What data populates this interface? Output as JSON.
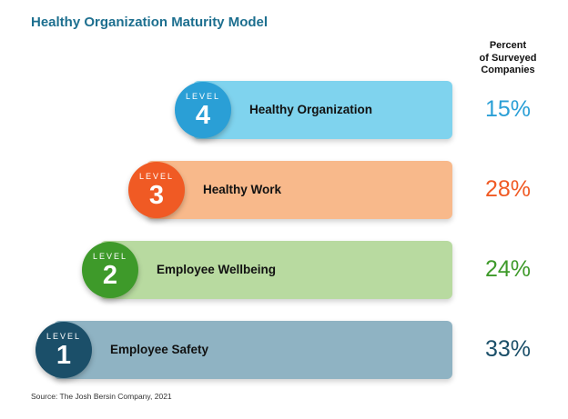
{
  "title": "Healthy Organization Maturity Model",
  "percent_header": [
    "Percent",
    "of Surveyed",
    "Companies"
  ],
  "source": "Source: The Josh Bersin Company, 2021",
  "chart_data": {
    "type": "bar",
    "title": "Healthy Organization Maturity Model",
    "value_column_label": "Percent of Surveyed Companies",
    "unit": "%",
    "series": [
      {
        "level_word": "LEVEL",
        "level": "4",
        "label": "Healthy Organization",
        "value": 15,
        "value_label": "15%",
        "badge_color": "#2a9fd6",
        "bar_color": "#7fd3ee",
        "value_color": "#2a9fd6"
      },
      {
        "level_word": "LEVEL",
        "level": "3",
        "label": "Healthy Work",
        "value": 28,
        "value_label": "28%",
        "badge_color": "#f05a24",
        "bar_color": "#f8b98b",
        "value_color": "#f05a24"
      },
      {
        "level_word": "LEVEL",
        "level": "2",
        "label": "Employee Wellbeing",
        "value": 24,
        "value_label": "24%",
        "badge_color": "#3e9a2a",
        "bar_color": "#b8daa0",
        "value_color": "#3e9a2a"
      },
      {
        "level_word": "LEVEL",
        "level": "1",
        "label": "Employee Safety",
        "value": 33,
        "value_label": "33%",
        "badge_color": "#1b4f69",
        "bar_color": "#8fb3c3",
        "value_color": "#1b4f69"
      }
    ]
  }
}
